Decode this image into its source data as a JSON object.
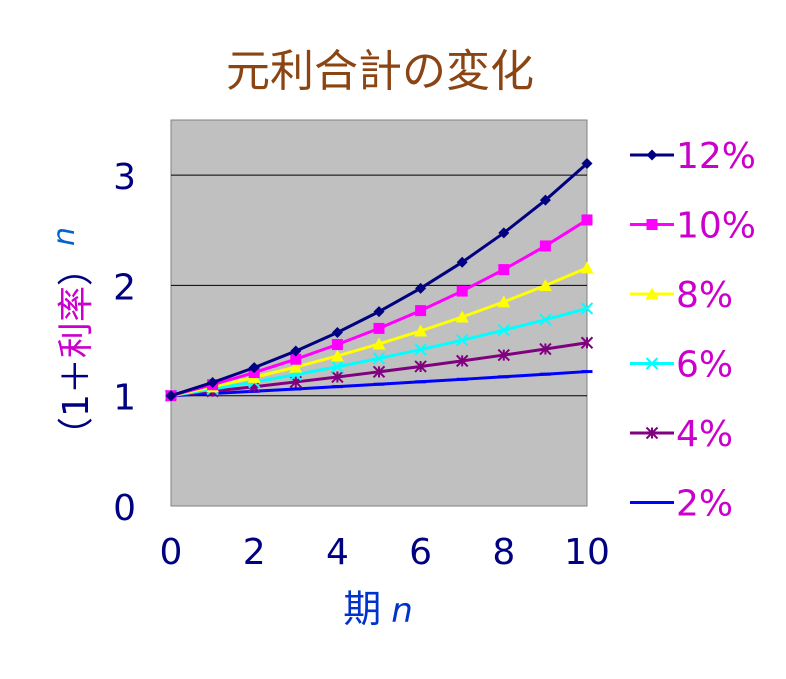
{
  "chart_data": {
    "type": "line",
    "title": "元利合計の変化",
    "xlabel_main": "期",
    "xlabel_var": "n",
    "ylabel_open": "（1＋",
    "ylabel_mid": "利率",
    "ylabel_close": "）",
    "ylabel_exp": "n",
    "x": [
      0,
      1,
      2,
      3,
      4,
      5,
      6,
      7,
      8,
      9,
      10
    ],
    "xticks": [
      "0",
      "2",
      "4",
      "6",
      "8",
      "10"
    ],
    "xlim": [
      0,
      10
    ],
    "yticks": [
      "0",
      "1",
      "2",
      "3"
    ],
    "ylim": [
      0,
      3.5
    ],
    "grid": "horizontal",
    "legend_position": "right",
    "series": [
      {
        "name": "12%",
        "color": "#000080",
        "marker": "diamond",
        "values": [
          1,
          1.12,
          1.2544,
          1.4049,
          1.5735,
          1.7623,
          1.9738,
          2.2107,
          2.476,
          2.7731,
          3.1058
        ]
      },
      {
        "name": "10%",
        "color": "#FF00FF",
        "marker": "square",
        "values": [
          1,
          1.1,
          1.21,
          1.331,
          1.4641,
          1.6105,
          1.7716,
          1.9487,
          2.1436,
          2.3579,
          2.5937
        ]
      },
      {
        "name": "8%",
        "color": "#FFFF00",
        "marker": "triangle",
        "values": [
          1,
          1.08,
          1.1664,
          1.2597,
          1.3605,
          1.4693,
          1.5869,
          1.7138,
          1.8509,
          1.999,
          2.1589
        ]
      },
      {
        "name": "6%",
        "color": "#00FFFF",
        "marker": "x",
        "values": [
          1,
          1.06,
          1.1236,
          1.191,
          1.2625,
          1.3382,
          1.4185,
          1.5036,
          1.5938,
          1.6895,
          1.7908
        ]
      },
      {
        "name": "4%",
        "color": "#800080",
        "marker": "star",
        "values": [
          1,
          1.04,
          1.0816,
          1.1249,
          1.1699,
          1.2167,
          1.2653,
          1.3159,
          1.3686,
          1.4233,
          1.4802
        ]
      },
      {
        "name": "2%",
        "color": "#0000FF",
        "marker": "dash",
        "values": [
          1,
          1.02,
          1.0404,
          1.0612,
          1.0824,
          1.1041,
          1.1262,
          1.1487,
          1.1717,
          1.1951,
          1.219
        ]
      }
    ],
    "colors": {
      "title": "#8B4513",
      "tick_labels": "#000080",
      "xlabel": "#0033CC",
      "ylabel_paren": "#000080",
      "ylabel_mid": "#CC00CC",
      "ylabel_exp": "#0066CC",
      "legend_text": "#CC00CC",
      "plot_bg": "#C0C0C0"
    }
  }
}
